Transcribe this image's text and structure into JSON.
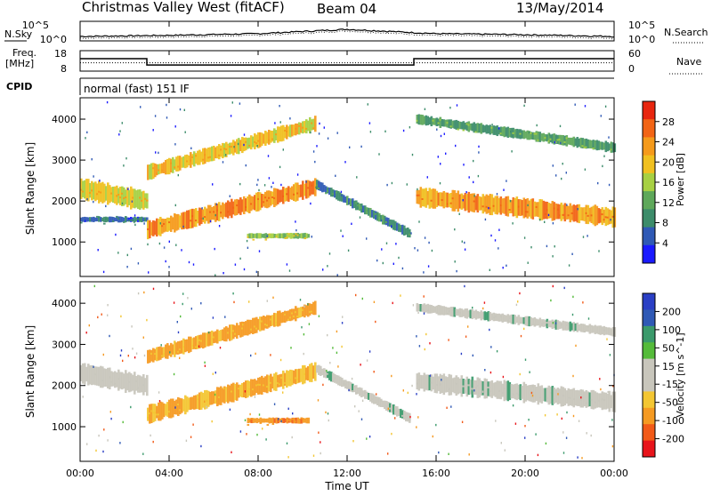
{
  "header": {
    "station": "Christmas Valley West (fitACF)",
    "beam": "Beam 04",
    "date": "13/May/2014"
  },
  "top_panels": {
    "nsky_label": "N.Sky",
    "nsearch_label": "N.Search",
    "freq_label_1": "Freq.",
    "freq_label_2": "[MHz]",
    "nave_label": "Nave",
    "cpid_label": "CPID",
    "cpid_value": "normal (fast) 151 IF",
    "nsky_ticks": [
      "10^5",
      "10^0"
    ],
    "nsearch_ticks": [
      "10^5",
      "10^0"
    ],
    "freq_ticks": [
      "18",
      "8"
    ],
    "nave_ticks": [
      "60",
      "0"
    ]
  },
  "colors": {
    "power_scale": [
      "#1a1aff",
      "#2f59b5",
      "#3c8c6a",
      "#5ea85a",
      "#a7d043",
      "#f0c020",
      "#f59a1b",
      "#f26415",
      "#e8260f"
    ],
    "velocity_scale": [
      "#e8141b",
      "#f25a18",
      "#f59a22",
      "#f3c632",
      "#c8c6bc",
      "#c8c6bc",
      "#55bb3a",
      "#3b9a6b",
      "#2f59b5",
      "#2a3fc5"
    ],
    "velocity_ground": "#c8c6bc"
  },
  "chart_data": [
    {
      "type": "line",
      "title": "N.Sky",
      "y_scale": "log",
      "ylim": [
        1,
        100000
      ],
      "x": [
        "00:00",
        "04:00",
        "08:00",
        "12:00",
        "16:00",
        "20:00",
        "00:00"
      ],
      "series": [
        {
          "name": "N.Sky",
          "values": [
            10,
            20,
            60,
            1000,
            60,
            30,
            10
          ]
        }
      ]
    },
    {
      "type": "line",
      "title": "Freq. [MHz]",
      "ylim": [
        8,
        18
      ],
      "x_hours": [
        0,
        3,
        3,
        15,
        15,
        24
      ],
      "series": [
        {
          "name": "Freq.",
          "values": [
            14.2,
            14.2,
            10.8,
            10.8,
            14.2,
            14.2
          ]
        },
        {
          "name": "Nave",
          "values": [
            24,
            24,
            24,
            24,
            24,
            24
          ]
        }
      ]
    },
    {
      "type": "heatmap",
      "title": "Power [dB]",
      "xlabel": "",
      "ylabel": "Slant Range [km]",
      "x_ticks": [
        "00:00",
        "04:00",
        "08:00",
        "12:00",
        "16:00",
        "20:00",
        "00:00"
      ],
      "y_ticks": [
        1000,
        2000,
        3000,
        4000
      ],
      "ylim": [
        180,
        4500
      ],
      "colorbar_ticks": [
        4,
        8,
        12,
        16,
        20,
        24,
        28
      ],
      "colorbar_label": "Power [dB]",
      "bands": [
        {
          "from_h": 0,
          "to_h": 3,
          "range_start_km": 2300,
          "range_end_km": 2000,
          "width_km": 450,
          "level_db": 18
        },
        {
          "from_h": 0,
          "to_h": 3,
          "range_start_km": 1550,
          "range_end_km": 1550,
          "width_km": 120,
          "level_db": 5
        },
        {
          "from_h": 3,
          "to_h": 10.6,
          "range_start_km": 1300,
          "range_end_km": 2350,
          "width_km": 380,
          "level_db": 25
        },
        {
          "from_h": 3,
          "to_h": 10.6,
          "range_start_km": 2700,
          "range_end_km": 3900,
          "width_km": 320,
          "level_db": 20
        },
        {
          "from_h": 10.6,
          "to_h": 14.8,
          "range_start_km": 2400,
          "range_end_km": 1200,
          "width_km": 200,
          "level_db": 8
        },
        {
          "from_h": 15.1,
          "to_h": 24,
          "range_start_km": 2100,
          "range_end_km": 1600,
          "width_km": 420,
          "level_db": 24
        },
        {
          "from_h": 15.1,
          "to_h": 24,
          "range_start_km": 4000,
          "range_end_km": 3300,
          "width_km": 220,
          "level_db": 10
        },
        {
          "from_h": 7.5,
          "to_h": 10.3,
          "range_start_km": 1150,
          "range_end_km": 1150,
          "width_km": 120,
          "level_db": 14
        }
      ]
    },
    {
      "type": "heatmap",
      "title": "Velocity [m s^-1]",
      "xlabel": "Time UT",
      "ylabel": "Slant Range [km]",
      "x_ticks": [
        "00:00",
        "04:00",
        "08:00",
        "12:00",
        "16:00",
        "20:00",
        "00:00"
      ],
      "y_ticks": [
        1000,
        2000,
        3000,
        4000
      ],
      "ylim": [
        180,
        4500
      ],
      "colorbar_ticks": [
        200,
        100,
        50,
        15,
        -15,
        -50,
        -100,
        -200
      ],
      "colorbar_label": "Velocity [m s^-1]",
      "bands": [
        {
          "from_h": 0,
          "to_h": 3,
          "range_start_km": 2300,
          "range_end_km": 2000,
          "width_km": 450,
          "level_ms": 0
        },
        {
          "from_h": 3,
          "to_h": 10.6,
          "range_start_km": 1300,
          "range_end_km": 2350,
          "width_km": 380,
          "level_ms": -60
        },
        {
          "from_h": 3,
          "to_h": 10.6,
          "range_start_km": 2700,
          "range_end_km": 3900,
          "width_km": 320,
          "level_ms": -70
        },
        {
          "from_h": 10.6,
          "to_h": 14.8,
          "range_start_km": 2400,
          "range_end_km": 1200,
          "width_km": 200,
          "level_ms": 0
        },
        {
          "from_h": 15.1,
          "to_h": 24,
          "range_start_km": 2100,
          "range_end_km": 1600,
          "width_km": 420,
          "level_ms": 0
        },
        {
          "from_h": 15.1,
          "to_h": 24,
          "range_start_km": 3900,
          "range_end_km": 3300,
          "width_km": 200,
          "level_ms": 0
        },
        {
          "from_h": 7.5,
          "to_h": 10.3,
          "range_start_km": 1150,
          "range_end_km": 1150,
          "width_km": 120,
          "level_ms": -80
        }
      ]
    }
  ]
}
